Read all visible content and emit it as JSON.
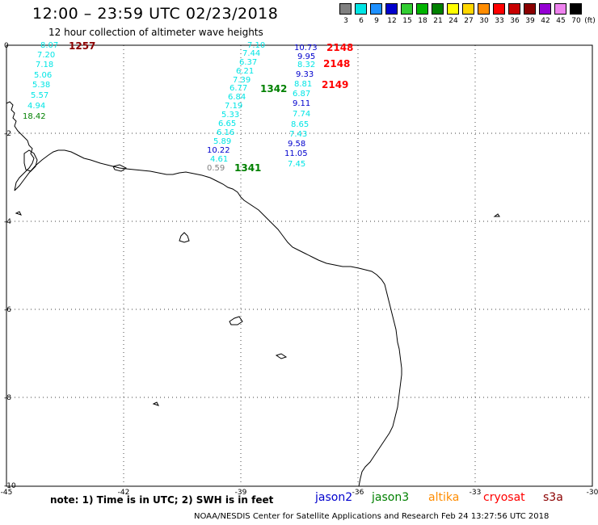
{
  "title": "12:00 – 23:59 UTC 02/23/2018",
  "subtitle": "12 hour collection of altimeter wave heights",
  "legend": {
    "unit": "(ft)",
    "items": [
      {
        "label": "3",
        "color": "#808080"
      },
      {
        "label": "6",
        "color": "#00e5e5"
      },
      {
        "label": "9",
        "color": "#1e90ff"
      },
      {
        "label": "12",
        "color": "#0000cd"
      },
      {
        "label": "15",
        "color": "#32cd32"
      },
      {
        "label": "18",
        "color": "#00b400"
      },
      {
        "label": "21",
        "color": "#008000"
      },
      {
        "label": "24",
        "color": "#ffff00"
      },
      {
        "label": "27",
        "color": "#ffd700"
      },
      {
        "label": "30",
        "color": "#ff8c00"
      },
      {
        "label": "33",
        "color": "#ff0000"
      },
      {
        "label": "36",
        "color": "#c80000"
      },
      {
        "label": "39",
        "color": "#8b0000"
      },
      {
        "label": "42",
        "color": "#9400d3"
      },
      {
        "label": "45",
        "color": "#ee82ee"
      },
      {
        "label": "70",
        "color": "#000000"
      }
    ]
  },
  "axes": {
    "x_ticks": [
      "-45",
      "-42",
      "-39",
      "-36",
      "-33",
      "-30"
    ],
    "y_ticks": [
      "0",
      "-2",
      "-4",
      "-6",
      "-8",
      "-10"
    ]
  },
  "passes": [
    {
      "label": "1257",
      "color": "#8b0000"
    },
    {
      "label": "1342",
      "color": "#008000"
    },
    {
      "label": "1341",
      "color": "#008000"
    },
    {
      "label": "2148",
      "color": "#ff0000"
    },
    {
      "label": "2148",
      "color": "#ff0000"
    },
    {
      "label": "2149",
      "color": "#ff0000"
    }
  ],
  "tracks": {
    "west": [
      {
        "v": "8.07",
        "c": "#00e5e5"
      },
      {
        "v": "7.20",
        "c": "#00e5e5"
      },
      {
        "v": "7.18",
        "c": "#00e5e5"
      },
      {
        "v": "5.06",
        "c": "#00e5e5"
      },
      {
        "v": "5.38",
        "c": "#00e5e5"
      },
      {
        "v": "5.57",
        "c": "#00e5e5"
      },
      {
        "v": "4.94",
        "c": "#00e5e5"
      },
      {
        "v": "18.42",
        "c": "#008000"
      }
    ],
    "middle": [
      {
        "v": "7.10",
        "c": "#00e5e5"
      },
      {
        "v": "7.44",
        "c": "#00e5e5"
      },
      {
        "v": "6.37",
        "c": "#00e5e5"
      },
      {
        "v": "6.21",
        "c": "#00e5e5"
      },
      {
        "v": "7.39",
        "c": "#00e5e5"
      },
      {
        "v": "6.77",
        "c": "#00e5e5"
      },
      {
        "v": "6.84",
        "c": "#00e5e5"
      },
      {
        "v": "7.19",
        "c": "#00e5e5"
      },
      {
        "v": "5.33",
        "c": "#00e5e5"
      },
      {
        "v": "6.65",
        "c": "#00e5e5"
      },
      {
        "v": "6.16",
        "c": "#00e5e5"
      },
      {
        "v": "5.89",
        "c": "#00e5e5"
      },
      {
        "v": "10.22",
        "c": "#0000cd"
      },
      {
        "v": "4.61",
        "c": "#00e5e5"
      },
      {
        "v": "0.59",
        "c": "#808080"
      }
    ],
    "east": [
      {
        "v": "10.73",
        "c": "#0000cd"
      },
      {
        "v": "9.95",
        "c": "#0000cd"
      },
      {
        "v": "8.32",
        "c": "#00e5e5"
      },
      {
        "v": "9.33",
        "c": "#0000cd"
      },
      {
        "v": "8.81",
        "c": "#00e5e5"
      },
      {
        "v": "6.87",
        "c": "#00e5e5"
      },
      {
        "v": "9.11",
        "c": "#0000cd"
      },
      {
        "v": "7.74",
        "c": "#00e5e5"
      },
      {
        "v": "8.65",
        "c": "#00e5e5"
      },
      {
        "v": "7.43",
        "c": "#00e5e5"
      },
      {
        "v": "9.58",
        "c": "#0000cd"
      },
      {
        "v": "11.05",
        "c": "#0000cd"
      },
      {
        "v": "7.45",
        "c": "#00e5e5"
      }
    ]
  },
  "note": "note: 1) Time is in UTC; 2) SWH is in feet",
  "satellites": [
    {
      "name": "jason2",
      "color": "#0000cd"
    },
    {
      "name": "jason3",
      "color": "#008000"
    },
    {
      "name": "altika",
      "color": "#ff8c00"
    },
    {
      "name": "cryosat",
      "color": "#ff0000"
    },
    {
      "name": "s3a",
      "color": "#8b0000"
    }
  ],
  "footer": "NOAA/NESDIS Center for Satellite Applications and Research    Feb 24 13:27:56 UTC 2018"
}
